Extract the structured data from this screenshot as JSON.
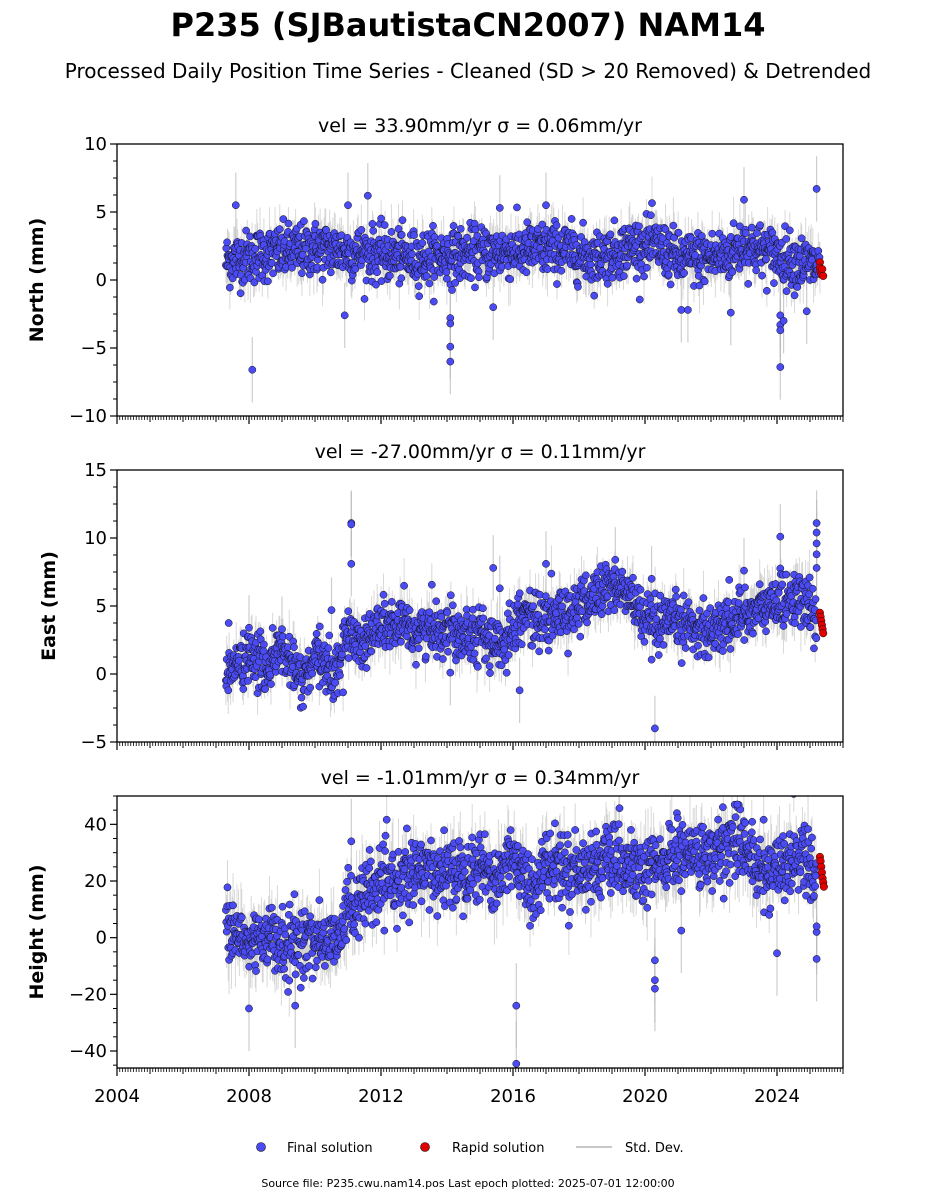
{
  "title": "P235 (SJBautistaCN2007) NAM14",
  "subtitle": "Processed Daily Position Time Series - Cleaned (SD > 20 Removed) & Detrended",
  "footer": "Source file: P235.cwu.nam14.pos  Last epoch plotted: 2025-07-01 12:00:00",
  "legend": {
    "final": "Final solution",
    "rapid": "Rapid solution",
    "std": "Std. Dev."
  },
  "colors": {
    "final": "#4b4bf5",
    "rapid": "#e00000",
    "std": "#b8b8b8",
    "marker_edge": "#111111"
  },
  "chart_data": [
    {
      "type": "scatter",
      "panel": "north",
      "title": "vel = 33.90mm/yr   σ = 0.06mm/yr",
      "ylabel": "North (mm)",
      "xlim": [
        2004,
        2026
      ],
      "ylim": [
        -10,
        10
      ],
      "x_ticks": [
        2004,
        2008,
        2012,
        2016,
        2020,
        2024
      ],
      "y_ticks": [
        -10,
        -5,
        0,
        5,
        10
      ],
      "y_tick_labels": [
        "−10",
        "−5",
        "0",
        "5",
        "10"
      ],
      "x_tick_labels_visible": false,
      "trend": [
        [
          2007.3,
          1.4
        ],
        [
          2008.5,
          1.9
        ],
        [
          2010.0,
          2.3
        ],
        [
          2011.5,
          2.0
        ],
        [
          2013.0,
          1.6
        ],
        [
          2014.5,
          1.9
        ],
        [
          2016.5,
          2.2
        ],
        [
          2017.5,
          2.3
        ],
        [
          2018.5,
          1.6
        ],
        [
          2019.5,
          2.4
        ],
        [
          2020.3,
          2.6
        ],
        [
          2021.0,
          1.5
        ],
        [
          2022.5,
          1.8
        ],
        [
          2023.0,
          2.6
        ],
        [
          2024.0,
          1.8
        ],
        [
          2025.0,
          1.1
        ],
        [
          2025.3,
          1.0
        ]
      ],
      "spread": 1.3,
      "sd": 1.6,
      "outliers": [
        [
          2007.6,
          5.5
        ],
        [
          2008.1,
          -6.6
        ],
        [
          2010.9,
          -2.6
        ],
        [
          2011.0,
          5.5
        ],
        [
          2011.6,
          6.2
        ],
        [
          2014.1,
          -2.8
        ],
        [
          2014.1,
          -3.2
        ],
        [
          2014.1,
          -4.9
        ],
        [
          2014.1,
          -6.0
        ],
        [
          2015.4,
          -2.0
        ],
        [
          2015.6,
          5.3
        ],
        [
          2017.0,
          5.5
        ],
        [
          2021.1,
          -2.2
        ],
        [
          2021.3,
          -2.2
        ],
        [
          2022.6,
          -2.4
        ],
        [
          2023.0,
          5.9
        ],
        [
          2024.1,
          -2.6
        ],
        [
          2024.1,
          -3.3
        ],
        [
          2024.1,
          -3.7
        ],
        [
          2024.1,
          -6.4
        ],
        [
          2024.2,
          -3.0
        ],
        [
          2024.9,
          -2.3
        ],
        [
          2025.2,
          6.7
        ]
      ],
      "rapid": {
        "x": [
          2025.3,
          2025.3,
          2025.32,
          2025.35,
          2025.37,
          2025.4
        ],
        "y": [
          1.3,
          0.9,
          0.6,
          0.4,
          0.8,
          0.3
        ]
      }
    },
    {
      "type": "scatter",
      "panel": "east",
      "title": "vel = -27.00mm/yr   σ = 0.11mm/yr",
      "ylabel": "East (mm)",
      "xlim": [
        2004,
        2026
      ],
      "ylim": [
        -5,
        15
      ],
      "x_ticks": [
        2004,
        2008,
        2012,
        2016,
        2020,
        2024
      ],
      "y_ticks": [
        -5,
        0,
        5,
        10,
        15
      ],
      "y_tick_labels": [
        "−5",
        "0",
        "5",
        "10",
        "15"
      ],
      "x_tick_labels_visible": false,
      "trend": [
        [
          2007.3,
          0.2
        ],
        [
          2008.0,
          1.2
        ],
        [
          2008.5,
          0.5
        ],
        [
          2009.0,
          1.8
        ],
        [
          2009.6,
          -0.6
        ],
        [
          2010.1,
          1.2
        ],
        [
          2010.6,
          0.0
        ],
        [
          2011.0,
          3.0
        ],
        [
          2011.5,
          2.4
        ],
        [
          2012.0,
          3.6
        ],
        [
          2013.0,
          3.2
        ],
        [
          2014.0,
          3.4
        ],
        [
          2015.0,
          3.0
        ],
        [
          2015.6,
          1.8
        ],
        [
          2016.2,
          4.4
        ],
        [
          2017.0,
          3.9
        ],
        [
          2018.0,
          4.9
        ],
        [
          2019.0,
          6.6
        ],
        [
          2019.6,
          5.6
        ],
        [
          2020.2,
          3.2
        ],
        [
          2021.0,
          3.8
        ],
        [
          2022.0,
          3.2
        ],
        [
          2023.0,
          4.4
        ],
        [
          2024.0,
          5.2
        ],
        [
          2024.5,
          5.8
        ],
        [
          2025.2,
          4.3
        ]
      ],
      "spread": 1.3,
      "sd": 1.6,
      "outliers": [
        [
          2008.0,
          3.4
        ],
        [
          2009.0,
          3.3
        ],
        [
          2010.5,
          4.7
        ],
        [
          2011.1,
          11.1
        ],
        [
          2011.1,
          11.0
        ],
        [
          2011.1,
          8.1
        ],
        [
          2014.1,
          0.1
        ],
        [
          2015.4,
          7.8
        ],
        [
          2015.6,
          6.3
        ],
        [
          2016.2,
          -1.2
        ],
        [
          2017.0,
          8.1
        ],
        [
          2019.1,
          8.4
        ],
        [
          2020.3,
          -4.0
        ],
        [
          2020.2,
          7.0
        ],
        [
          2023.0,
          7.6
        ],
        [
          2024.1,
          10.1
        ],
        [
          2025.2,
          11.1
        ],
        [
          2025.2,
          10.4
        ],
        [
          2025.2,
          9.6
        ],
        [
          2025.2,
          8.8
        ],
        [
          2025.2,
          7.8
        ]
      ],
      "rapid": {
        "x": [
          2025.3,
          2025.32,
          2025.34,
          2025.36,
          2025.38,
          2025.4
        ],
        "y": [
          4.5,
          4.2,
          3.9,
          3.6,
          3.3,
          3.0
        ]
      }
    },
    {
      "type": "scatter",
      "panel": "height",
      "title": "vel = -1.01mm/yr   σ = 0.34mm/yr",
      "ylabel": "Height (mm)",
      "xlim": [
        2004,
        2026
      ],
      "ylim": [
        -46,
        50
      ],
      "x_ticks": [
        2004,
        2008,
        2012,
        2016,
        2020,
        2024
      ],
      "x_tick_labels": [
        "2004",
        "2008",
        "2012",
        "2016",
        "2020",
        "2024"
      ],
      "y_ticks": [
        -40,
        -20,
        0,
        20,
        40
      ],
      "y_tick_labels": [
        "−40",
        "−20",
        "0",
        "20",
        "40"
      ],
      "x_tick_labels_visible": true,
      "trend": [
        [
          2007.3,
          3.0
        ],
        [
          2008.0,
          -2.0
        ],
        [
          2008.5,
          2.0
        ],
        [
          2009.0,
          -4.0
        ],
        [
          2010.0,
          0.0
        ],
        [
          2010.5,
          -2.0
        ],
        [
          2011.0,
          10.0
        ],
        [
          2011.5,
          14.0
        ],
        [
          2012.0,
          18.0
        ],
        [
          2013.0,
          22.0
        ],
        [
          2014.0,
          23.0
        ],
        [
          2015.0,
          26.0
        ],
        [
          2015.5,
          20.0
        ],
        [
          2016.0,
          30.0
        ],
        [
          2016.5,
          16.0
        ],
        [
          2017.0,
          26.0
        ],
        [
          2018.0,
          24.0
        ],
        [
          2019.0,
          27.0
        ],
        [
          2020.0,
          22.0
        ],
        [
          2021.0,
          30.0
        ],
        [
          2022.0,
          28.0
        ],
        [
          2022.8,
          37.0
        ],
        [
          2023.5,
          22.0
        ],
        [
          2024.2,
          26.0
        ],
        [
          2024.8,
          30.0
        ],
        [
          2025.2,
          22.0
        ]
      ],
      "spread": 8.0,
      "sd": 10.0,
      "outliers": [
        [
          2008.0,
          -25.0
        ],
        [
          2009.4,
          -24.0
        ],
        [
          2011.1,
          34.0
        ],
        [
          2016.1,
          -24.0
        ],
        [
          2016.1,
          -44.5
        ],
        [
          2020.3,
          -8.0
        ],
        [
          2020.3,
          -15.0
        ],
        [
          2020.3,
          -18.0
        ],
        [
          2021.1,
          2.5
        ],
        [
          2022.8,
          47.0
        ],
        [
          2024.0,
          -5.5
        ],
        [
          2025.2,
          -7.5
        ],
        [
          2025.2,
          2.0
        ],
        [
          2025.2,
          4.0
        ]
      ],
      "rapid": {
        "x": [
          2025.3,
          2025.32,
          2025.34,
          2025.36,
          2025.38,
          2025.4,
          2025.42
        ],
        "y": [
          28.5,
          27.0,
          25.0,
          23.0,
          21.0,
          19.5,
          18.0
        ]
      }
    }
  ]
}
